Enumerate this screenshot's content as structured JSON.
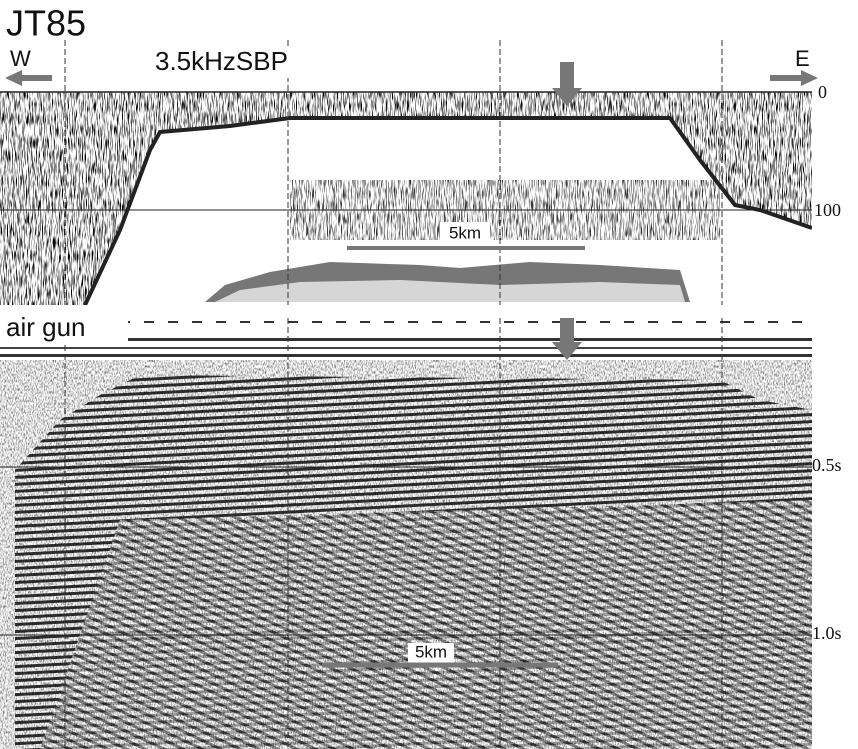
{
  "title": "JT85",
  "sbp_panel": {
    "west_label": "W",
    "east_label": "E",
    "title": "3.5kHzSBP",
    "depth_labels": [
      "0",
      "100"
    ],
    "scale_label": "5km"
  },
  "airgun_panel": {
    "title": "air gun",
    "time_labels": [
      "0.5s",
      "1.0s"
    ],
    "scale_label": "5km"
  }
}
